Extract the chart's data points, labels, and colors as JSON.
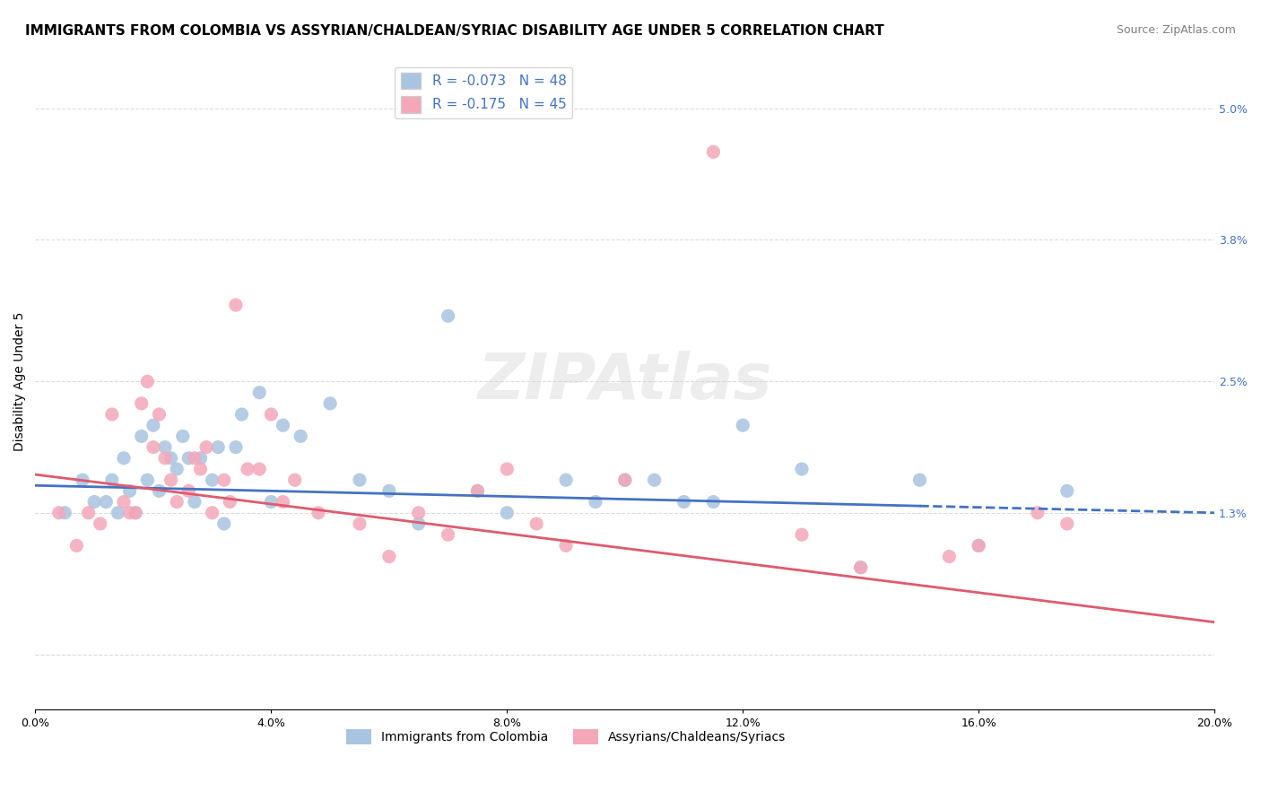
{
  "title": "IMMIGRANTS FROM COLOMBIA VS ASSYRIAN/CHALDEAN/SYRIAC DISABILITY AGE UNDER 5 CORRELATION CHART",
  "source": "Source: ZipAtlas.com",
  "ylabel": "Disability Age Under 5",
  "yaxis_ticks": [
    0.0,
    0.013,
    0.025,
    0.038,
    0.05
  ],
  "yaxis_labels": [
    "",
    "1.3%",
    "2.5%",
    "3.8%",
    "5.0%"
  ],
  "xlim": [
    0.0,
    0.2
  ],
  "ylim": [
    -0.005,
    0.055
  ],
  "legend_r1": "R = -0.073",
  "legend_n1": "N = 48",
  "legend_r2": "R = -0.175",
  "legend_n2": "N = 45",
  "color_blue": "#a8c4e0",
  "color_pink": "#f4a7b9",
  "line_blue": "#4472c4",
  "line_pink": "#e05a6e",
  "watermark": "ZIPAtlas",
  "blue_scatter_x": [
    0.005,
    0.008,
    0.01,
    0.012,
    0.013,
    0.014,
    0.015,
    0.016,
    0.017,
    0.018,
    0.019,
    0.02,
    0.021,
    0.022,
    0.023,
    0.024,
    0.025,
    0.026,
    0.027,
    0.028,
    0.03,
    0.031,
    0.032,
    0.034,
    0.035,
    0.038,
    0.04,
    0.042,
    0.045,
    0.05,
    0.055,
    0.06,
    0.065,
    0.07,
    0.075,
    0.08,
    0.09,
    0.095,
    0.1,
    0.105,
    0.11,
    0.115,
    0.12,
    0.13,
    0.14,
    0.15,
    0.16,
    0.175
  ],
  "blue_scatter_y": [
    0.013,
    0.016,
    0.014,
    0.014,
    0.016,
    0.013,
    0.018,
    0.015,
    0.013,
    0.02,
    0.016,
    0.021,
    0.015,
    0.019,
    0.018,
    0.017,
    0.02,
    0.018,
    0.014,
    0.018,
    0.016,
    0.019,
    0.012,
    0.019,
    0.022,
    0.024,
    0.014,
    0.021,
    0.02,
    0.023,
    0.016,
    0.015,
    0.012,
    0.031,
    0.015,
    0.013,
    0.016,
    0.014,
    0.016,
    0.016,
    0.014,
    0.014,
    0.021,
    0.017,
    0.008,
    0.016,
    0.01,
    0.015
  ],
  "pink_scatter_x": [
    0.004,
    0.007,
    0.009,
    0.011,
    0.013,
    0.015,
    0.016,
    0.017,
    0.018,
    0.019,
    0.02,
    0.021,
    0.022,
    0.023,
    0.024,
    0.026,
    0.027,
    0.028,
    0.029,
    0.03,
    0.032,
    0.033,
    0.034,
    0.036,
    0.038,
    0.04,
    0.042,
    0.044,
    0.048,
    0.055,
    0.06,
    0.065,
    0.07,
    0.075,
    0.08,
    0.085,
    0.09,
    0.1,
    0.115,
    0.13,
    0.14,
    0.155,
    0.16,
    0.17,
    0.175
  ],
  "pink_scatter_y": [
    0.013,
    0.01,
    0.013,
    0.012,
    0.022,
    0.014,
    0.013,
    0.013,
    0.023,
    0.025,
    0.019,
    0.022,
    0.018,
    0.016,
    0.014,
    0.015,
    0.018,
    0.017,
    0.019,
    0.013,
    0.016,
    0.014,
    0.032,
    0.017,
    0.017,
    0.022,
    0.014,
    0.016,
    0.013,
    0.012,
    0.009,
    0.013,
    0.011,
    0.015,
    0.017,
    0.012,
    0.01,
    0.016,
    0.046,
    0.011,
    0.008,
    0.009,
    0.01,
    0.013,
    0.012
  ],
  "blue_line_y_start": 0.0155,
  "blue_line_y_end": 0.013,
  "pink_line_y_start": 0.0165,
  "pink_line_y_end": 0.003,
  "title_fontsize": 11,
  "source_fontsize": 9,
  "axis_label_fontsize": 10,
  "tick_fontsize": 9,
  "legend_fontsize": 11,
  "scatter_size": 120
}
